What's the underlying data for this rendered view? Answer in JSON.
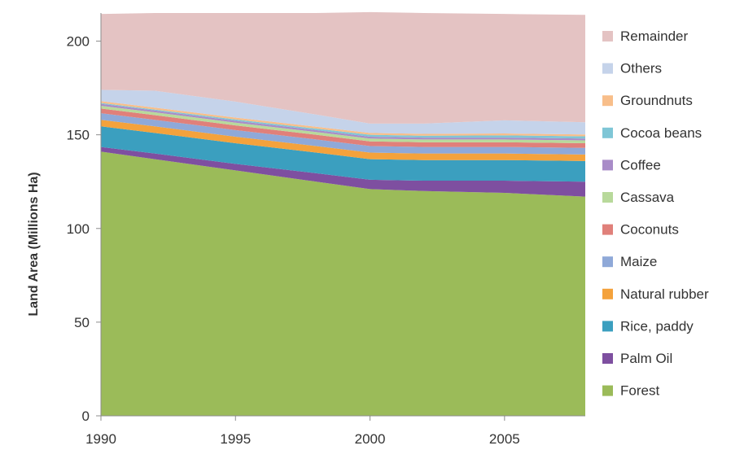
{
  "chart_data": {
    "type": "area",
    "stacked": true,
    "title": "",
    "xlabel": "",
    "ylabel": "Land Area (Millions Ha)",
    "xlim": [
      1990,
      2008
    ],
    "ylim": [
      0,
      215
    ],
    "x_ticks": [
      1990,
      1995,
      2000,
      2005
    ],
    "y_ticks": [
      0,
      50,
      100,
      150,
      200
    ],
    "grid": false,
    "legend_position": "right",
    "x": [
      1990,
      1992,
      1995,
      1998,
      2000,
      2002,
      2005,
      2008
    ],
    "series": [
      {
        "name": "Forest",
        "color": "#9bbb59",
        "values": [
          141,
          137,
          131,
          125,
          121,
          120,
          119,
          117
        ]
      },
      {
        "name": "Palm Oil",
        "color": "#7e4fa0",
        "values": [
          2.5,
          3.0,
          3.5,
          4.5,
          5.0,
          5.5,
          6.5,
          8.0
        ]
      },
      {
        "name": "Rice, paddy",
        "color": "#3b9fbf",
        "values": [
          11,
          11,
          11,
          11,
          11,
          11,
          11,
          11
        ]
      },
      {
        "name": "Natural rubber",
        "color": "#f4a23c",
        "values": [
          3.5,
          3.5,
          3.5,
          3.5,
          3.5,
          3.5,
          3.5,
          3.5
        ]
      },
      {
        "name": "Maize",
        "color": "#8fa9d8",
        "values": [
          3.5,
          3.5,
          3.5,
          3.5,
          3.5,
          3.5,
          3.5,
          3.5
        ]
      },
      {
        "name": "Coconuts",
        "color": "#e0807a",
        "values": [
          2.5,
          2.5,
          2.5,
          2.5,
          2.5,
          2.5,
          2.5,
          2.5
        ]
      },
      {
        "name": "Cassava",
        "color": "#b8d99b",
        "values": [
          1.5,
          1.5,
          1.5,
          1.5,
          1.5,
          1.5,
          1.5,
          1.5
        ]
      },
      {
        "name": "Coffee",
        "color": "#a98cc8",
        "values": [
          1.0,
          1.0,
          1.0,
          1.0,
          1.0,
          1.0,
          1.0,
          1.0
        ]
      },
      {
        "name": "Cocoa beans",
        "color": "#7fc6d6",
        "values": [
          0.5,
          0.5,
          0.7,
          0.8,
          1.0,
          1.0,
          1.2,
          1.2
        ]
      },
      {
        "name": "Groundnuts",
        "color": "#f8be8a",
        "values": [
          1.0,
          1.0,
          1.0,
          1.0,
          1.0,
          1.0,
          1.0,
          1.0
        ]
      },
      {
        "name": "Others",
        "color": "#c5d3ea",
        "values": [
          6,
          9,
          8.5,
          6.5,
          5,
          5.5,
          7,
          6.5
        ]
      },
      {
        "name": "Remainder",
        "color": "#e4c3c3",
        "values": [
          40.5,
          41.5,
          47.3,
          54.2,
          59.5,
          59.0,
          56.8,
          57.3
        ]
      }
    ]
  }
}
